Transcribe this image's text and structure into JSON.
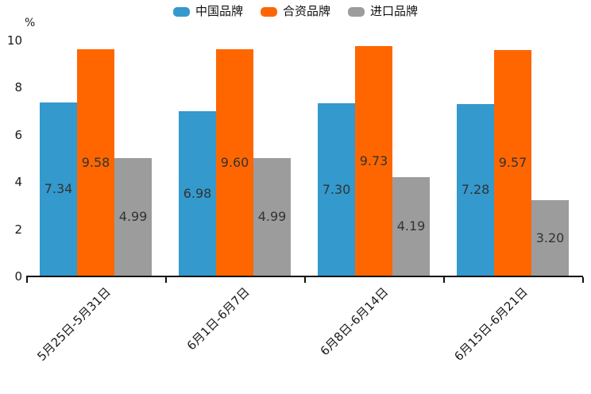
{
  "unit_label": "%",
  "colors": {
    "background": "#ffffff",
    "axis": "#111111",
    "tick_label": "#1a1a1a",
    "value_label": "#333333",
    "series_china": "#3499cd",
    "series_joint_venture": "#ff6600",
    "series_import": "#9c9c9c"
  },
  "chart_data": {
    "type": "bar",
    "title": "",
    "xlabel": "",
    "ylabel": "%",
    "ylim": [
      0,
      10
    ],
    "yticks": [
      0,
      2,
      4,
      6,
      8,
      10
    ],
    "grid": false,
    "legend_position": "top-center",
    "categories": [
      "5月25日-5月31日",
      "6月1日-6月7日",
      "6月8日-6月14日",
      "6月15日-6月21日"
    ],
    "series": [
      {
        "id": "china-brand",
        "name": "中国品牌",
        "color": "#3499cd",
        "values": [
          7.34,
          6.98,
          7.3,
          7.28
        ]
      },
      {
        "id": "joint-venture-brand",
        "name": "合资品牌",
        "color": "#ff6600",
        "values": [
          9.58,
          9.6,
          9.73,
          9.57
        ]
      },
      {
        "id": "import-brand",
        "name": "进口品牌",
        "color": "#9c9c9c",
        "values": [
          4.99,
          4.99,
          4.19,
          3.2
        ]
      }
    ],
    "value_label_format": "2-decimals"
  }
}
